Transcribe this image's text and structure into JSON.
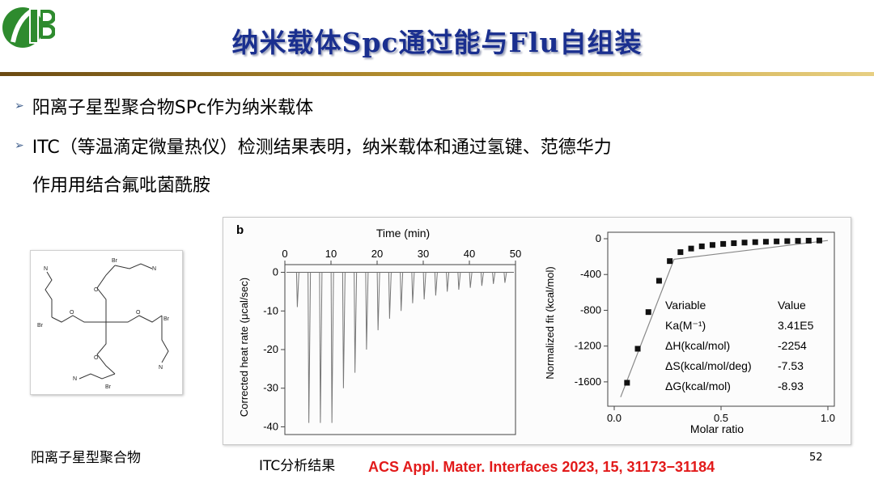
{
  "slide": {
    "title": "纳米载体Spc通过能与Flu自组装",
    "bullets": [
      {
        "text": "阳离子星型聚合物SPc作为纳米载体"
      },
      {
        "text": "ITC（等温滴定微量热仪）检测结果表明，纳米载体和通过氢键、范德华力",
        "continuation": "作用用结合氟吡菌酰胺"
      }
    ],
    "caption_polymer": "阳离子星型聚合物",
    "caption_itc": "ITC分析结果",
    "reference": "ACS Appl. Mater. Interfaces 2023, 15, 31173−31184",
    "page_number": "52",
    "colors": {
      "title": "#1a2f8f",
      "rule_dark": "#6b4a12",
      "rule_light": "#e7cf83",
      "reference": "#e21a1a",
      "bullet_arrow": "#3f5e8c"
    }
  },
  "molecule": {
    "atom_labels": [
      "Br",
      "N",
      "O"
    ]
  },
  "chart_data": [
    {
      "type": "line",
      "panel_label": "b",
      "xlabel": "Time (min)",
      "ylabel": "Corrected heat rate (μcal/sec)",
      "xlim": [
        0,
        50
      ],
      "ylim": [
        -42,
        2
      ],
      "x_ticks": [
        0,
        10,
        20,
        30,
        40,
        50
      ],
      "y_ticks": [
        0,
        -10,
        -20,
        -30,
        -40
      ],
      "baseline": 0,
      "injection_times": [
        2.7,
        5.2,
        7.7,
        10.2,
        12.7,
        15.2,
        17.7,
        20.2,
        22.7,
        25.2,
        27.7,
        30.2,
        32.7,
        35.2,
        37.7,
        40.2,
        42.7,
        45.2,
        47.7
      ],
      "peak_minima": [
        -9,
        -39,
        -39,
        -39,
        -30,
        -26,
        -20,
        -15,
        -12,
        -10,
        -8,
        -7,
        -6,
        -5,
        -4.5,
        -4,
        -3.5,
        -3,
        -2.7
      ]
    },
    {
      "type": "scatter",
      "xlabel": "Molar ratio",
      "ylabel": "Normalized fit (kcal/mol)",
      "xlim": [
        0.0,
        1.0
      ],
      "ylim": [
        -1800,
        0
      ],
      "x_ticks": [
        "0.0",
        "0.5",
        "1.0"
      ],
      "y_ticks": [
        "0",
        "-400",
        "-800",
        "-1200",
        "-1600"
      ],
      "points": {
        "x": [
          0.06,
          0.11,
          0.16,
          0.21,
          0.26,
          0.31,
          0.36,
          0.41,
          0.46,
          0.51,
          0.56,
          0.61,
          0.66,
          0.71,
          0.76,
          0.81,
          0.86,
          0.91,
          0.96
        ],
        "y": [
          -1610,
          -1230,
          -820,
          -470,
          -250,
          -150,
          -110,
          -85,
          -70,
          -58,
          -50,
          -43,
          -38,
          -34,
          -30,
          -27,
          -24,
          -22,
          -20
        ]
      },
      "fit_line": {
        "x": [
          0.03,
          0.28,
          1.0
        ],
        "y": [
          -1770,
          -230,
          -20
        ]
      },
      "table": {
        "headers": [
          "Variable",
          "Value"
        ],
        "rows": [
          [
            "Ka(M⁻¹)",
            "3.41E5"
          ],
          [
            "ΔH(kcal/mol)",
            "-2254"
          ],
          [
            "ΔS(kcal/mol/deg)",
            "-7.53"
          ],
          [
            "ΔG(kcal/mol)",
            "-8.93"
          ]
        ]
      }
    }
  ]
}
